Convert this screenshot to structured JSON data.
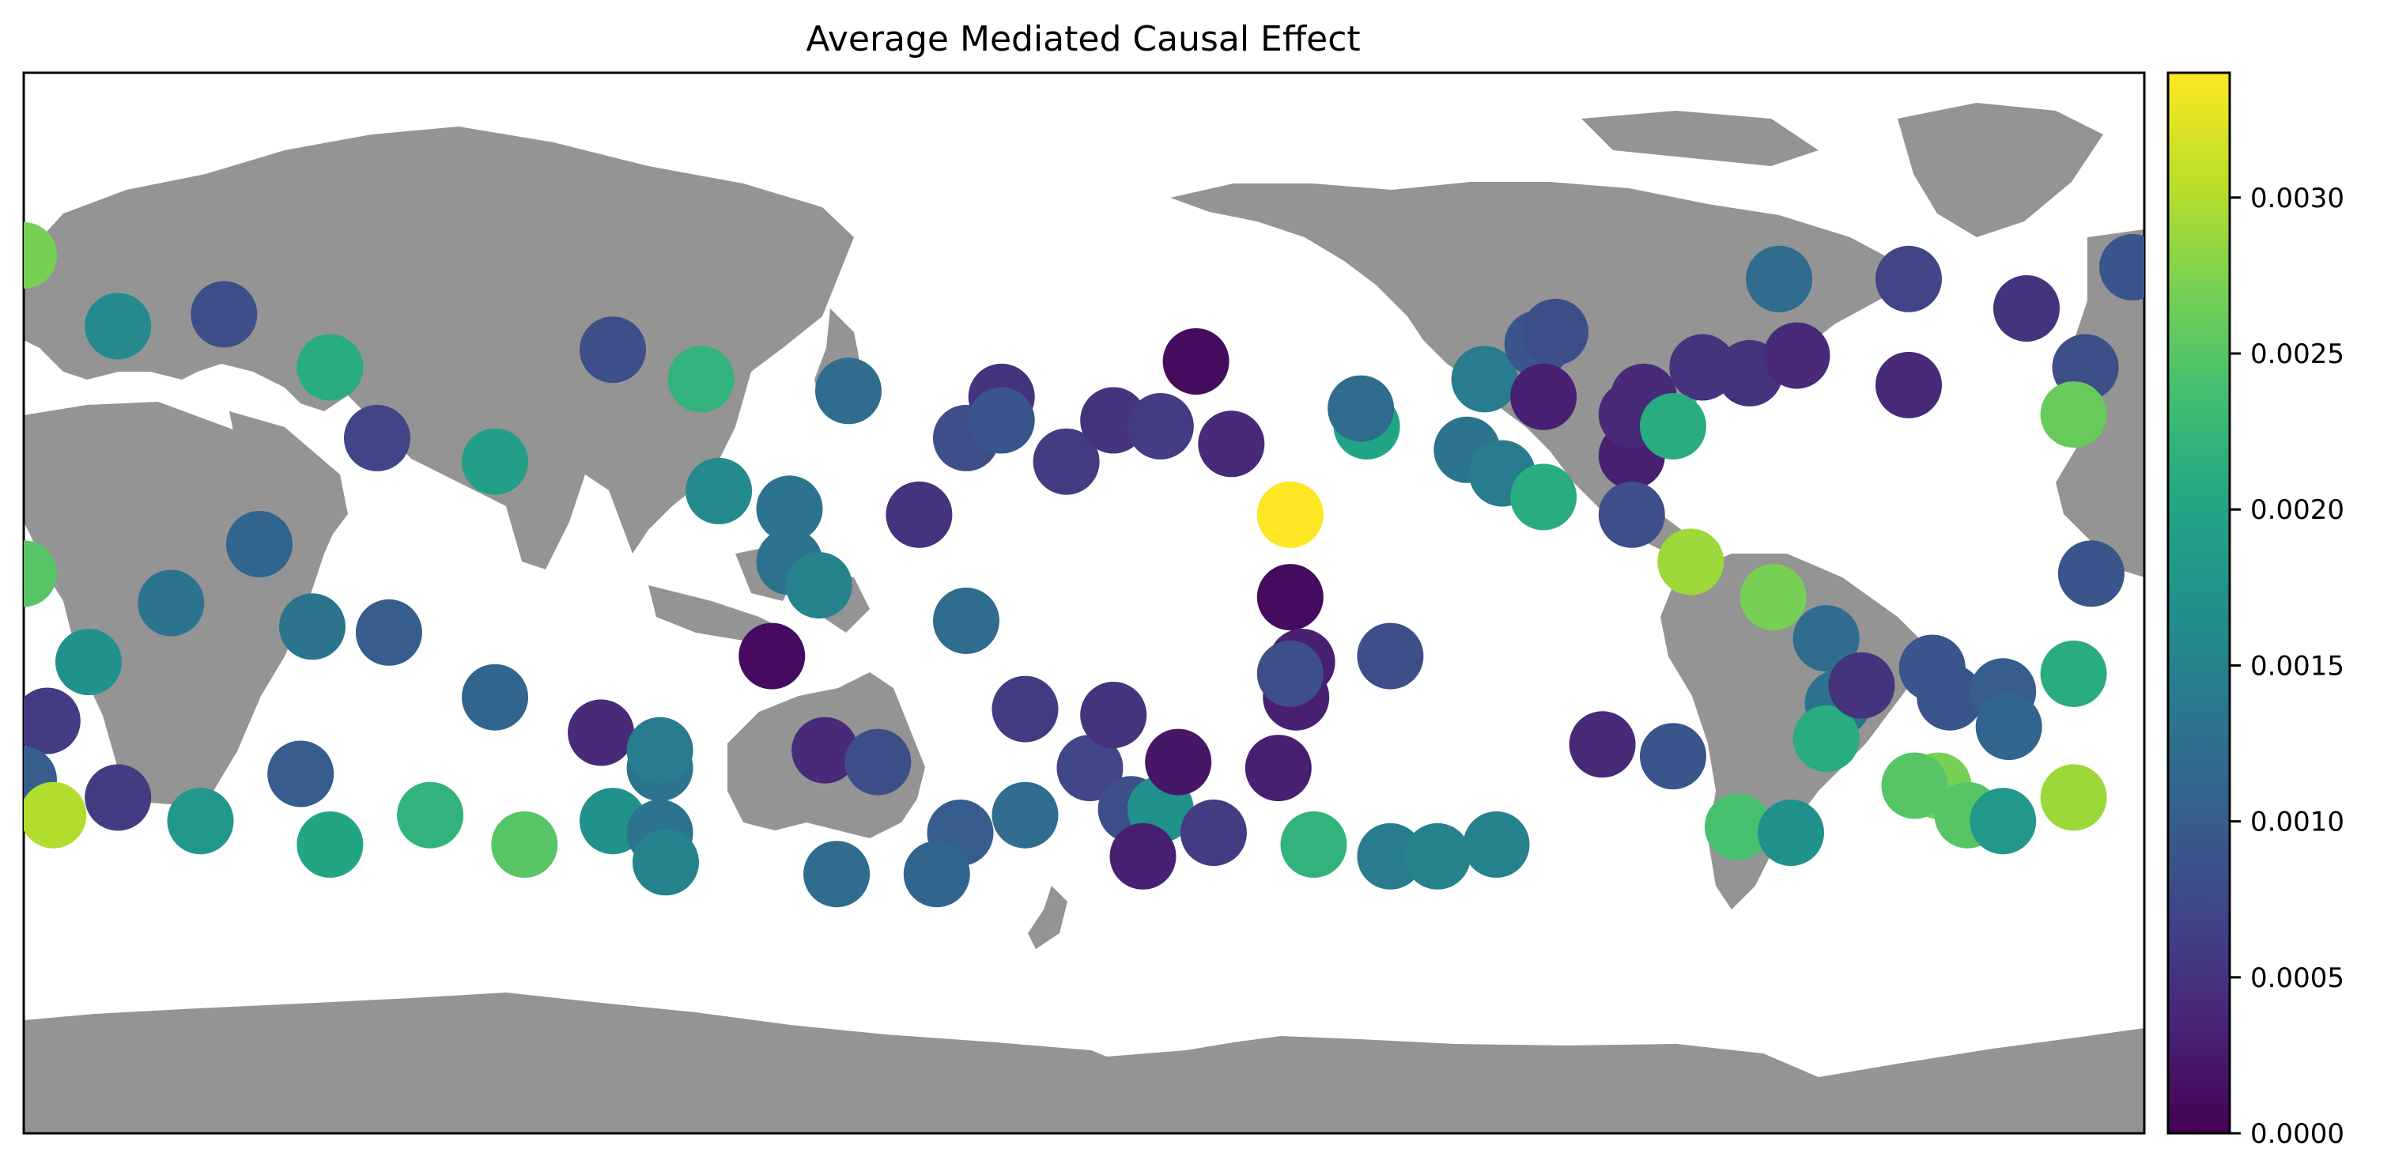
{
  "chart_data": {
    "type": "scatter",
    "title": "Average Mediated Causal Effect",
    "xlabel": "",
    "ylabel": "",
    "xlim": [
      -180,
      180
    ],
    "ylim": [
      -90,
      90
    ],
    "grid": false,
    "map_projection": "plate-carree-pacific-centered",
    "land_color": "#939493",
    "colormap": "viridis",
    "colorbar": {
      "vmin": 0.0,
      "vmax": 0.0034,
      "ticks": [
        0.0,
        0.0005,
        0.001,
        0.0015,
        0.002,
        0.0025,
        0.003
      ],
      "tick_labels": [
        "0.0000",
        "0.0005",
        "0.0010",
        "0.0015",
        "0.0020",
        "0.0025",
        "0.0030"
      ]
    },
    "points": [
      {
        "x": -180,
        "y": 59,
        "value": 0.0027
      },
      {
        "x": -164,
        "y": 47,
        "value": 0.0016
      },
      {
        "x": -146,
        "y": 49,
        "value": 0.0008
      },
      {
        "x": -128,
        "y": 40,
        "value": 0.0021
      },
      {
        "x": -120,
        "y": 28,
        "value": 0.0007
      },
      {
        "x": -100,
        "y": 24,
        "value": 0.0019
      },
      {
        "x": -180,
        "y": 5,
        "value": 0.0025
      },
      {
        "x": -140,
        "y": 10,
        "value": 0.0011
      },
      {
        "x": -155,
        "y": 0,
        "value": 0.0013
      },
      {
        "x": -169,
        "y": -10,
        "value": 0.0017
      },
      {
        "x": -118,
        "y": -5,
        "value": 0.001
      },
      {
        "x": -176,
        "y": -20,
        "value": 0.0006
      },
      {
        "x": -131,
        "y": -4,
        "value": 0.0013
      },
      {
        "x": -180,
        "y": -30,
        "value": 0.001
      },
      {
        "x": -175,
        "y": -36,
        "value": 0.003
      },
      {
        "x": -164,
        "y": -33,
        "value": 0.0006
      },
      {
        "x": -150,
        "y": -37,
        "value": 0.0018
      },
      {
        "x": -133,
        "y": -29,
        "value": 0.001
      },
      {
        "x": -128,
        "y": -41,
        "value": 0.002
      },
      {
        "x": -111,
        "y": -36,
        "value": 0.0022
      },
      {
        "x": -100,
        "y": -16,
        "value": 0.0011
      },
      {
        "x": -82,
        "y": -22,
        "value": 0.0004
      },
      {
        "x": -95,
        "y": -41,
        "value": 0.0025
      },
      {
        "x": -80,
        "y": -37,
        "value": 0.0017
      },
      {
        "x": -72,
        "y": -28,
        "value": 0.0013
      },
      {
        "x": -72,
        "y": -39,
        "value": 0.0013
      },
      {
        "x": -71,
        "y": -44,
        "value": 0.0015
      },
      {
        "x": -72,
        "y": -25,
        "value": 0.0014
      },
      {
        "x": -80,
        "y": 43,
        "value": 0.0008
      },
      {
        "x": -50,
        "y": 16,
        "value": 0.0013
      },
      {
        "x": -50,
        "y": 7,
        "value": 0.0013
      },
      {
        "x": -65,
        "y": 38,
        "value": 0.0022
      },
      {
        "x": -62,
        "y": 19,
        "value": 0.0016
      },
      {
        "x": -40,
        "y": 36,
        "value": 0.0012
      },
      {
        "x": -45,
        "y": 3,
        "value": 0.0015
      },
      {
        "x": -28,
        "y": 15,
        "value": 0.0005
      },
      {
        "x": -14,
        "y": 35,
        "value": 0.0005
      },
      {
        "x": -20,
        "y": 28,
        "value": 0.0008
      },
      {
        "x": -3,
        "y": 24,
        "value": 0.0006
      },
      {
        "x": -44,
        "y": -25,
        "value": 0.0004
      },
      {
        "x": -53,
        "y": -9,
        "value": 0.0001
      },
      {
        "x": -14,
        "y": 31,
        "value": 0.0009
      },
      {
        "x": 5,
        "y": 31,
        "value": 0.0005
      },
      {
        "x": 13,
        "y": 30,
        "value": 0.0006
      },
      {
        "x": -20,
        "y": -3,
        "value": 0.0012
      },
      {
        "x": -10,
        "y": -36,
        "value": 0.0012
      },
      {
        "x": -21,
        "y": -39,
        "value": 0.001
      },
      {
        "x": -35,
        "y": -27,
        "value": 0.0008
      },
      {
        "x": -42,
        "y": -46,
        "value": 0.0012
      },
      {
        "x": -25,
        "y": -46,
        "value": 0.0011
      },
      {
        "x": -10,
        "y": -18,
        "value": 0.0006
      },
      {
        "x": 1,
        "y": -28,
        "value": 0.0007
      },
      {
        "x": 5,
        "y": -19,
        "value": 0.0005
      },
      {
        "x": 8,
        "y": -35,
        "value": 0.0008
      },
      {
        "x": 13,
        "y": -35,
        "value": 0.0017
      },
      {
        "x": 10,
        "y": -43,
        "value": 0.0003
      },
      {
        "x": 22,
        "y": -39,
        "value": 0.0006
      },
      {
        "x": 25,
        "y": 27,
        "value": 0.0004
      },
      {
        "x": 16,
        "y": -27,
        "value": 0.0002
      },
      {
        "x": 36,
        "y": -16,
        "value": 0.0003
      },
      {
        "x": 33,
        "y": -28,
        "value": 0.0003
      },
      {
        "x": 19,
        "y": 41,
        "value": 0.0001
      },
      {
        "x": 35,
        "y": 15,
        "value": 0.0034
      },
      {
        "x": 35,
        "y": 15,
        "value": 0.0034
      },
      {
        "x": 35,
        "y": 1,
        "value": 0.0001
      },
      {
        "x": 37,
        "y": -10,
        "value": 0.0003
      },
      {
        "x": 35,
        "y": -12,
        "value": 0.0008
      },
      {
        "x": 52,
        "y": -9,
        "value": 0.0008
      },
      {
        "x": 39,
        "y": -41,
        "value": 0.0022
      },
      {
        "x": 52,
        "y": -43,
        "value": 0.0014
      },
      {
        "x": 60,
        "y": -43,
        "value": 0.0015
      },
      {
        "x": 70,
        "y": -41,
        "value": 0.0015
      },
      {
        "x": 68,
        "y": 38,
        "value": 0.0014
      },
      {
        "x": 48,
        "y": 30,
        "value": 0.002
      },
      {
        "x": 47,
        "y": 33,
        "value": 0.0012
      },
      {
        "x": 65,
        "y": 26,
        "value": 0.0013
      },
      {
        "x": 71,
        "y": 22,
        "value": 0.0014
      },
      {
        "x": 78,
        "y": 18,
        "value": 0.0021
      },
      {
        "x": 77,
        "y": 44,
        "value": 0.0009
      },
      {
        "x": 80,
        "y": 46,
        "value": 0.0008
      },
      {
        "x": 78,
        "y": 35,
        "value": 0.0003
      },
      {
        "x": 95,
        "y": 35,
        "value": 0.0004
      },
      {
        "x": 93,
        "y": 25,
        "value": 0.0003
      },
      {
        "x": 93,
        "y": 32,
        "value": 0.0004
      },
      {
        "x": 105,
        "y": 40,
        "value": 0.0005
      },
      {
        "x": 113,
        "y": 39,
        "value": 0.0005
      },
      {
        "x": 121,
        "y": 42,
        "value": 0.0004
      },
      {
        "x": 118,
        "y": 55,
        "value": 0.0012
      },
      {
        "x": 140,
        "y": 55,
        "value": 0.0007
      },
      {
        "x": 178,
        "y": 57,
        "value": 0.0009
      },
      {
        "x": 93,
        "y": 15,
        "value": 0.0008
      },
      {
        "x": 100,
        "y": 30,
        "value": 0.0021
      },
      {
        "x": 103,
        "y": 7,
        "value": 0.0029
      },
      {
        "x": 117,
        "y": 1,
        "value": 0.0027
      },
      {
        "x": 126,
        "y": -6,
        "value": 0.0012
      },
      {
        "x": 128,
        "y": -17,
        "value": 0.0013
      },
      {
        "x": 126,
        "y": -23,
        "value": 0.0021
      },
      {
        "x": 88,
        "y": -24,
        "value": 0.0004
      },
      {
        "x": 100,
        "y": -26,
        "value": 0.0009
      },
      {
        "x": 111,
        "y": -38,
        "value": 0.0024
      },
      {
        "x": 120,
        "y": -39,
        "value": 0.0017
      },
      {
        "x": 132,
        "y": -14,
        "value": 0.0005
      },
      {
        "x": 144,
        "y": -11,
        "value": 0.0009
      },
      {
        "x": 147,
        "y": -16,
        "value": 0.0009
      },
      {
        "x": 156,
        "y": -15,
        "value": 0.001
      },
      {
        "x": 157,
        "y": -21,
        "value": 0.0011
      },
      {
        "x": 145,
        "y": -31,
        "value": 0.0027
      },
      {
        "x": 141,
        "y": -31,
        "value": 0.0025
      },
      {
        "x": 150,
        "y": -36,
        "value": 0.0025
      },
      {
        "x": 168,
        "y": -12,
        "value": 0.0021
      },
      {
        "x": 168,
        "y": -33,
        "value": 0.0029
      },
      {
        "x": 156,
        "y": -37,
        "value": 0.0018
      },
      {
        "x": 140,
        "y": 37,
        "value": 0.0004
      },
      {
        "x": 160,
        "y": 50,
        "value": 0.0005
      },
      {
        "x": 170,
        "y": 40,
        "value": 0.0008
      },
      {
        "x": 168,
        "y": 32,
        "value": 0.0026
      },
      {
        "x": 171,
        "y": 5,
        "value": 0.0009
      }
    ]
  }
}
